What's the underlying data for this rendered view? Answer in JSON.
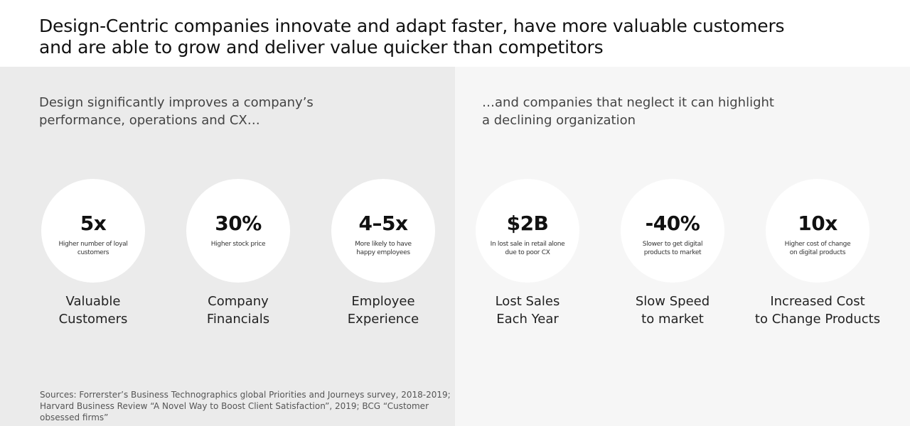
{
  "title": {
    "line1": "Design-Centric companies innovate and adapt faster, have more valuable customers",
    "line2": "and are able to grow and deliver value quicker than competitors"
  },
  "left": {
    "subtitle": {
      "line1": "Design significantly improves a company’s",
      "line2": "performance, operations and CX…"
    },
    "stats": [
      {
        "value": "5x",
        "desc1": "Higher number of loyal",
        "desc2": "customers",
        "caption1": "Valuable",
        "caption2": "Customers"
      },
      {
        "value": "30%",
        "desc1": "Higher stock price",
        "desc2": "",
        "caption1": "Company",
        "caption2": "Financials"
      },
      {
        "value": "4–5x",
        "desc1": "More likely to have",
        "desc2": "happy employees",
        "caption1": "Employee",
        "caption2": "Experience"
      }
    ],
    "sources": {
      "line1": "Sources: Forrerster’s Business Technographics global Priorities and Journeys survey, 2018-2019;",
      "line2": "Harvard Business Review “A Novel Way to Boost Client Satisfaction”, 2019; BCG “Customer",
      "line3": "obsessed firms”"
    }
  },
  "right": {
    "subtitle": {
      "line1": "…and companies that neglect it can highlight",
      "line2": "a declining organization"
    },
    "stats": [
      {
        "value": "$2B",
        "desc1": "In lost sale in retail alone",
        "desc2": "due to poor CX",
        "caption1": "Lost Sales",
        "caption2": "Each Year"
      },
      {
        "value": "-40%",
        "desc1": "Slower to get digital",
        "desc2": "products to market",
        "caption1": "Slow Speed",
        "caption2": "to market"
      },
      {
        "value": "10x",
        "desc1": "Higher cost of change",
        "desc2": "on digital products",
        "caption1": "Increased Cost",
        "caption2": "to Change Products"
      }
    ]
  },
  "colors": {
    "left_panel": "#ebebeb",
    "right_panel": "#f6f6f6",
    "circle": "#ffffff"
  }
}
